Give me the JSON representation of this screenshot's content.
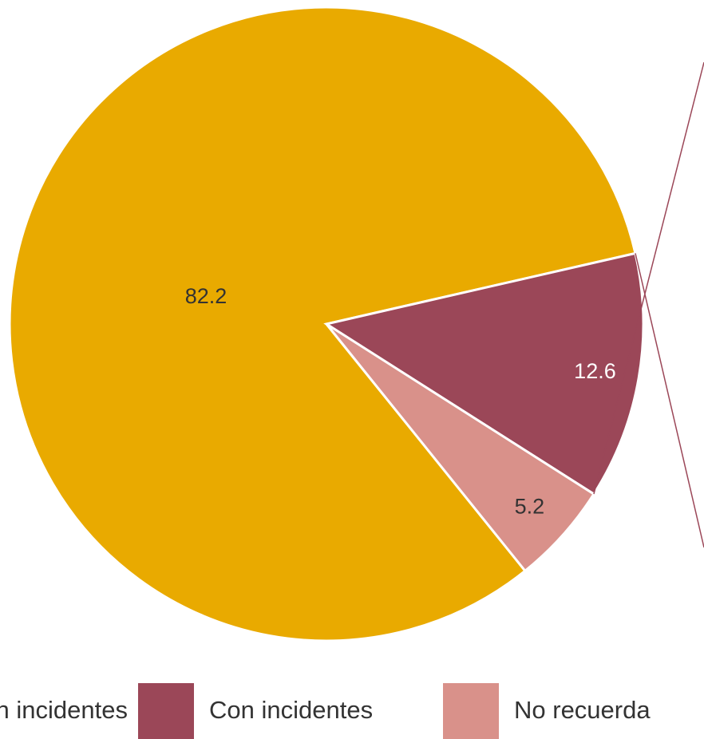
{
  "chart_data": {
    "type": "pie",
    "slices": [
      {
        "label": "Sin incidentes",
        "value": 82.2,
        "color": "#E9AA00",
        "label_color": "#333333"
      },
      {
        "label": "Con incidentes",
        "value": 12.6,
        "color": "#9B4758",
        "label_color": "#ffffff"
      },
      {
        "label": "No recuerda",
        "value": 5.2,
        "color": "#D9918A",
        "label_color": "#333333"
      }
    ],
    "data_labels": [
      "82.2",
      "12.6",
      "5.2"
    ],
    "legend": {
      "placement": "bottom",
      "entries": [
        "Sin incidentes",
        "Con incidentes",
        "No recuerda"
      ]
    },
    "connector_color": "#9B4758"
  }
}
